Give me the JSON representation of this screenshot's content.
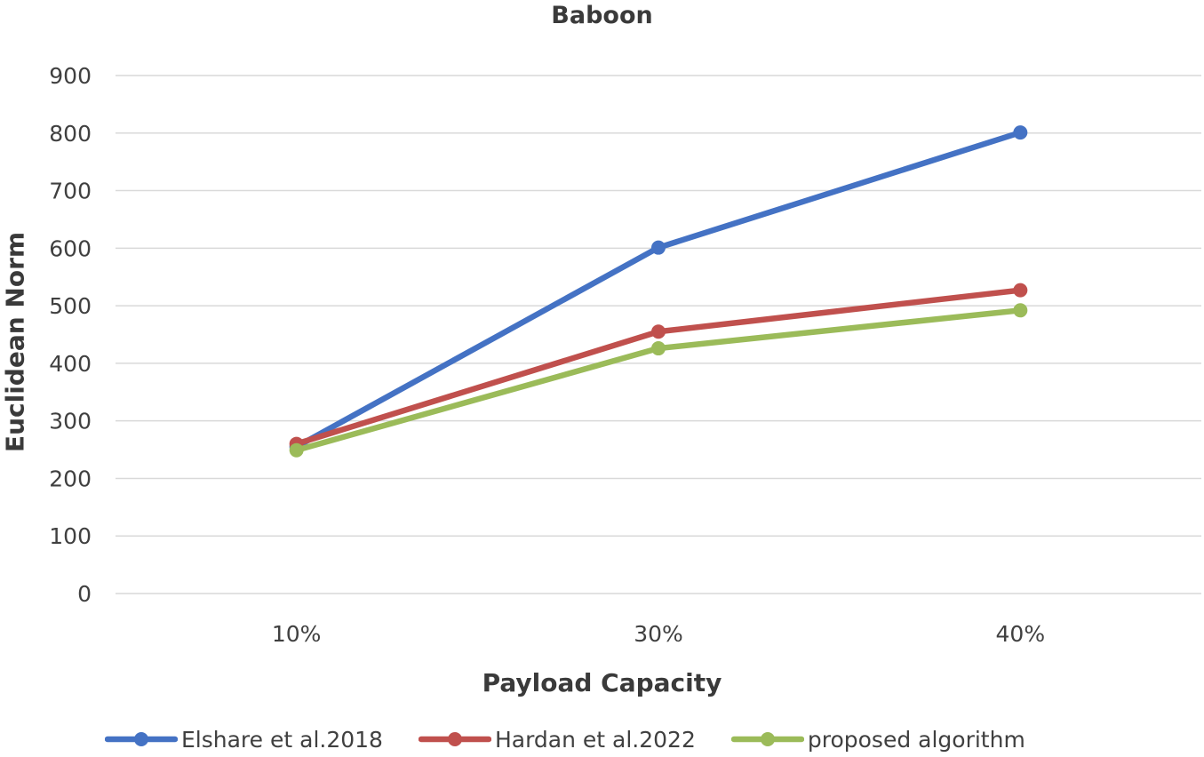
{
  "chart_data": {
    "type": "line",
    "title": "Baboon",
    "xlabel": "Payload Capacity",
    "ylabel": "Euclidean Norm",
    "categories": [
      "10%",
      "30%",
      "40%"
    ],
    "ylim": [
      0,
      900
    ],
    "yticks": [
      0,
      100,
      200,
      300,
      400,
      500,
      600,
      700,
      800,
      900
    ],
    "grid": true,
    "legend_position": "bottom",
    "series": [
      {
        "name": "Elshare et al.2018",
        "color": "#4472C4",
        "values": [
          255,
          601,
          801
        ]
      },
      {
        "name": "Hardan et al.2022",
        "color": "#C0504D",
        "values": [
          260,
          455,
          527
        ]
      },
      {
        "name": "proposed algorithm",
        "color": "#9BBB59",
        "values": [
          249,
          426,
          492
        ]
      }
    ]
  }
}
